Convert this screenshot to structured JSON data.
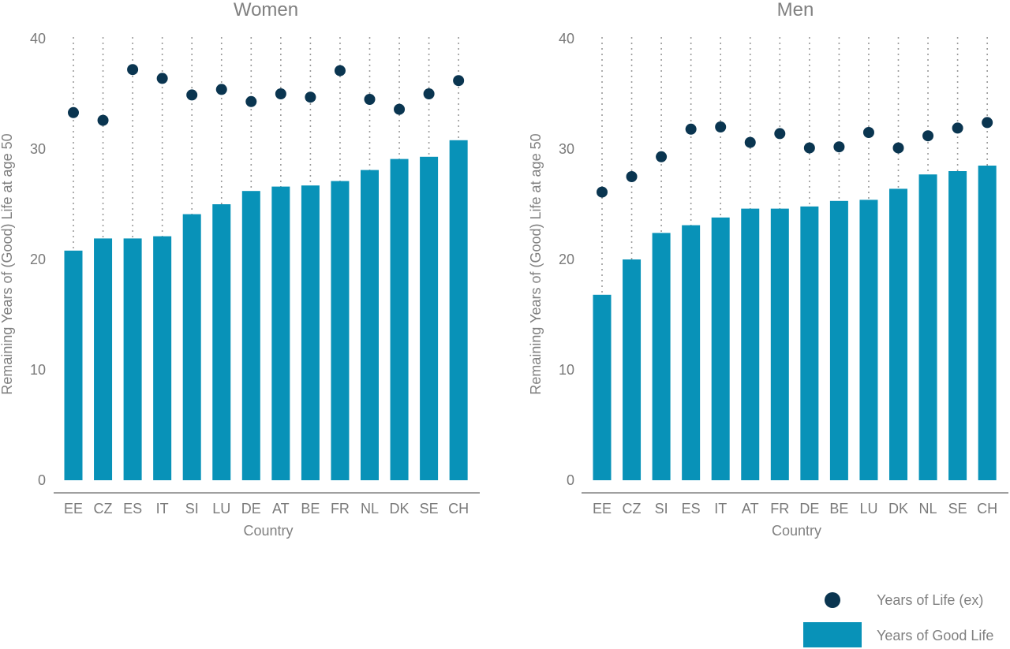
{
  "colors": {
    "bar": "#0892b8",
    "dot": "#0a3550",
    "dotted": "#9a9a9a",
    "axis": "#808080",
    "text": "#808080"
  },
  "legend": {
    "dot_label": "Years of Life (ex)",
    "bar_label": "Years of Good Life"
  },
  "chart_data": [
    {
      "type": "bar",
      "title": "Women",
      "xlabel": "Country",
      "ylabel": "Remaining Years of (Good) Life at age 50",
      "ylim": [
        0,
        40
      ],
      "yticks": [
        "0",
        "10",
        "20",
        "30",
        "40"
      ],
      "categories": [
        "EE",
        "CZ",
        "ES",
        "IT",
        "SI",
        "LU",
        "DE",
        "AT",
        "BE",
        "FR",
        "NL",
        "DK",
        "SE",
        "CH"
      ],
      "series": [
        {
          "name": "Years of Good Life",
          "kind": "bar",
          "values": [
            20.8,
            21.9,
            21.9,
            22.1,
            24.1,
            25.0,
            26.2,
            26.6,
            26.7,
            27.1,
            28.1,
            29.1,
            29.3,
            30.8
          ]
        },
        {
          "name": "Years of Life (ex)",
          "kind": "dot",
          "values": [
            33.3,
            32.6,
            37.2,
            36.4,
            34.9,
            35.4,
            34.3,
            35.0,
            34.7,
            37.1,
            34.5,
            33.6,
            35.0,
            36.2
          ]
        }
      ]
    },
    {
      "type": "bar",
      "title": "Men",
      "xlabel": "Country",
      "ylabel": "Remaining Years of (Good) Life at age 50",
      "ylim": [
        0,
        40
      ],
      "yticks": [
        "0",
        "10",
        "20",
        "30",
        "40"
      ],
      "categories": [
        "EE",
        "CZ",
        "SI",
        "ES",
        "IT",
        "AT",
        "FR",
        "DE",
        "BE",
        "LU",
        "DK",
        "NL",
        "SE",
        "CH"
      ],
      "series": [
        {
          "name": "Years of Good Life",
          "kind": "bar",
          "values": [
            16.8,
            20.0,
            22.4,
            23.1,
            23.8,
            24.6,
            24.6,
            24.8,
            25.3,
            25.4,
            26.4,
            27.7,
            28.0,
            28.5
          ]
        },
        {
          "name": "Years of Life (ex)",
          "kind": "dot",
          "values": [
            26.1,
            27.5,
            29.3,
            31.8,
            32.0,
            30.6,
            31.4,
            30.1,
            30.2,
            31.5,
            30.1,
            31.2,
            31.9,
            32.4
          ]
        }
      ]
    }
  ]
}
